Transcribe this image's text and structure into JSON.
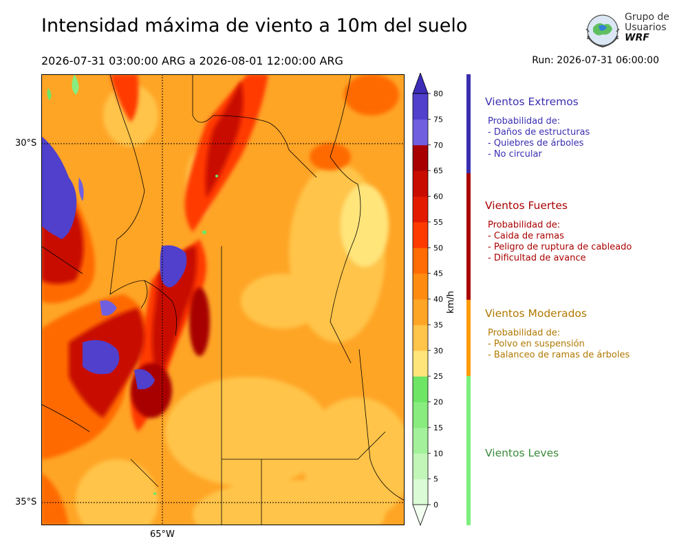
{
  "header": {
    "title": "Intensidad máxima de viento a 10m del suelo",
    "period": "2026-07-31 03:00:00 ARG  a  2026-08-01 12:00:00 ARG",
    "run": "Run: 2026-07-31 06:00:00"
  },
  "logo": {
    "line1": "Grupo de",
    "line2": "Usuarios",
    "line3": "WRF"
  },
  "map": {
    "lat_labels": [
      "30°S",
      "35°S"
    ],
    "lon_labels": [
      "65°W"
    ]
  },
  "colorbar": {
    "unit": "km/h",
    "ticks": [
      "0",
      "5",
      "10",
      "15",
      "20",
      "25",
      "30",
      "35",
      "40",
      "45",
      "50",
      "55",
      "60",
      "65",
      "70",
      "75",
      "80"
    ],
    "colors": [
      "#f2fff0",
      "#dbfbd6",
      "#c2f6b8",
      "#a3f19a",
      "#88ec7e",
      "#6ee565",
      "#ffe57a",
      "#ffc44a",
      "#ffa526",
      "#ff8c10",
      "#ff6b05",
      "#ff3a00",
      "#e31a00",
      "#c80c00",
      "#a80000",
      "#7060e0",
      "#5040cc",
      "#3c2cb8"
    ]
  },
  "categories": [
    {
      "title": "Vientos Extremos",
      "color": "#3a2eb0",
      "body": "Probabilidad de:\n- Daños de estructuras\n- Quiebres de árboles\n- No circular"
    },
    {
      "title": "Vientos Fuertes",
      "color": "#aa0000",
      "body": "Probabilidad de:\n- Caida de ramas\n- Peligro de ruptura de cableado\n- Dificultad de avance"
    },
    {
      "title": "Vientos Moderados",
      "color": "#b07800",
      "body": "Probabilidad de:\n- Polvo en suspensión\n- Balanceo de ramas de árboles"
    },
    {
      "title": "Vientos Leves",
      "color": "#3a8a3a",
      "body": ""
    }
  ],
  "category_bar_colors": [
    "#3a2eb0",
    "#aa0000",
    "#ff9a00",
    "#7cf07c"
  ]
}
